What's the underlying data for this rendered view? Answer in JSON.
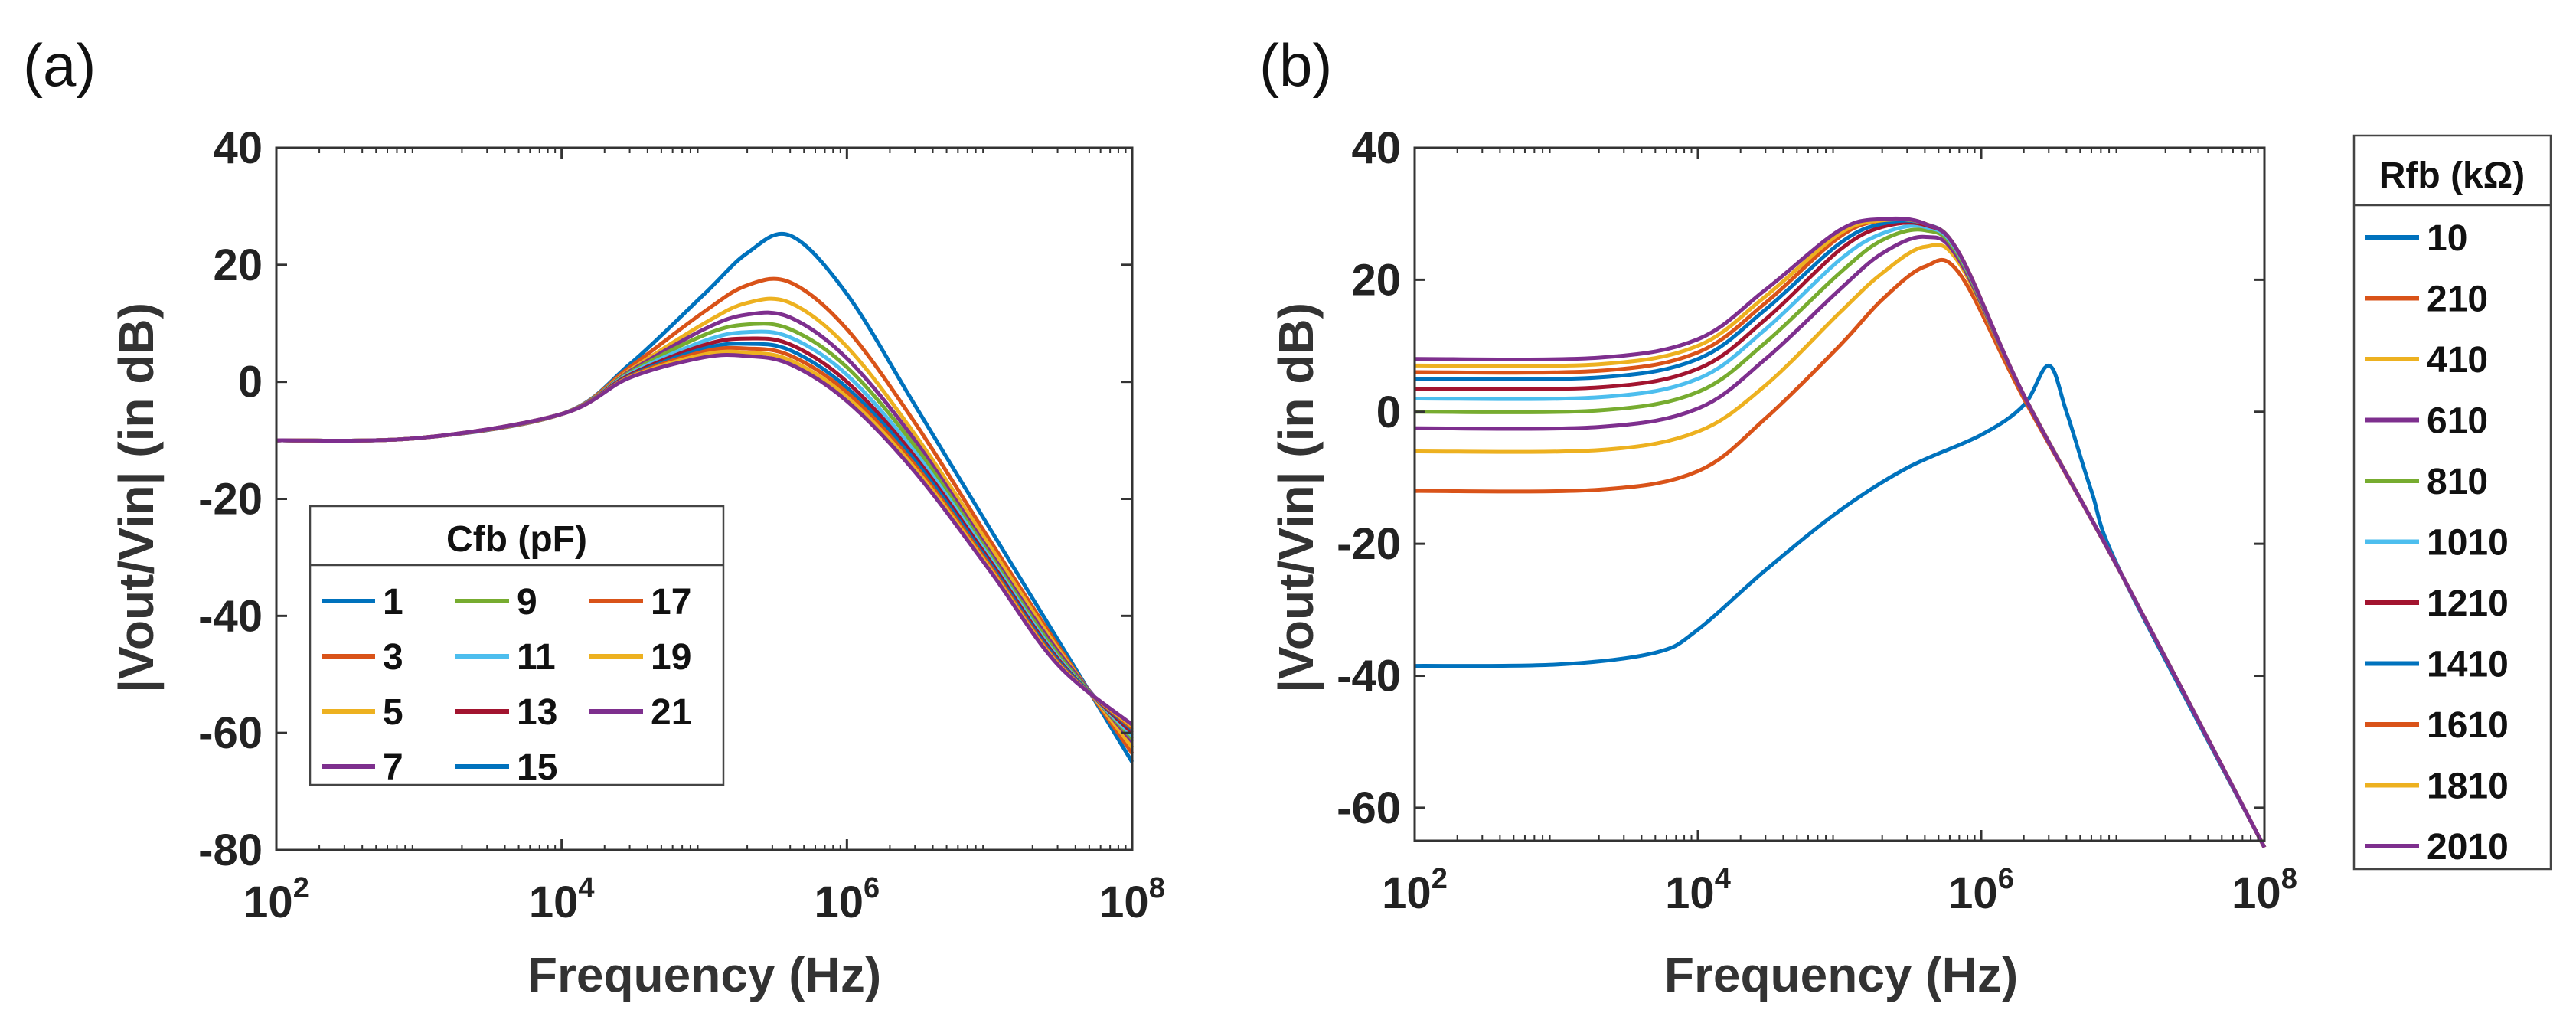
{
  "colors": [
    "#0072BD",
    "#D95319",
    "#EDB120",
    "#7E2F8E",
    "#77AC30",
    "#4DBEEE",
    "#A2142F"
  ],
  "chart_data": [
    {
      "panel": "(a)",
      "type": "line",
      "xscale": "log",
      "xlim": [
        100,
        100000000
      ],
      "ylim": [
        -80,
        40
      ],
      "xticks": [
        {
          "base": "10",
          "exp": "2"
        },
        {
          "base": "10",
          "exp": "4"
        },
        {
          "base": "10",
          "exp": "6"
        },
        {
          "base": "10",
          "exp": "8"
        }
      ],
      "yticks": [
        "40",
        "20",
        "0",
        "-20",
        "-40",
        "-60",
        "-80"
      ],
      "xlabel": "Frequency (Hz)",
      "ylabel": "|Vout/Vin| (in dB)",
      "legend": {
        "title": "Cfb (pF)",
        "position": "lower-left",
        "columns": 3
      },
      "x": [
        100,
        1000,
        10000,
        30000,
        100000,
        200000,
        400000,
        1000000,
        3000000,
        10000000,
        30000000,
        100000000
      ],
      "series": [
        {
          "name": "1",
          "values": [
            -10,
            -9.6,
            -5.5,
            3,
            15,
            22,
            25,
            15,
            -4,
            -25,
            -44,
            -65
          ]
        },
        {
          "name": "3",
          "values": [
            -10,
            -9.6,
            -5.5,
            2.5,
            12,
            16.5,
            17,
            9,
            -7,
            -27,
            -45,
            -63.5
          ]
        },
        {
          "name": "5",
          "values": [
            -10,
            -9.6,
            -5.5,
            2,
            10,
            13.5,
            13.5,
            6,
            -9,
            -28,
            -45.5,
            -62.5
          ]
        },
        {
          "name": "7",
          "values": [
            -10,
            -9.6,
            -5.5,
            1.8,
            9,
            11.5,
            11,
            4,
            -10,
            -29,
            -46,
            -61.5
          ]
        },
        {
          "name": "9",
          "values": [
            -10,
            -9.6,
            -5.5,
            1.6,
            8,
            9.8,
            9,
            2.5,
            -11,
            -29.5,
            -46.5,
            -61
          ]
        },
        {
          "name": "11",
          "values": [
            -10,
            -9.6,
            -5.5,
            1.4,
            7,
            8.5,
            7.6,
            1.2,
            -12,
            -30,
            -47,
            -60.5
          ]
        },
        {
          "name": "13",
          "values": [
            -10,
            -9.6,
            -5.5,
            1.2,
            6.3,
            7.4,
            6.4,
            0,
            -12.8,
            -30.5,
            -47.3,
            -60
          ]
        },
        {
          "name": "15",
          "values": [
            -10,
            -9.6,
            -5.5,
            1,
            5.7,
            6.5,
            5.4,
            -1,
            -13.5,
            -31,
            -47.6,
            -59.5
          ]
        },
        {
          "name": "17",
          "values": [
            -10,
            -9.6,
            -5.5,
            0.9,
            5.2,
            5.7,
            4.5,
            -1.8,
            -14.2,
            -31.4,
            -47.9,
            -59.2
          ]
        },
        {
          "name": "19",
          "values": [
            -10,
            -9.6,
            -5.5,
            0.8,
            4.7,
            5,
            3.7,
            -2.6,
            -14.8,
            -31.8,
            -48.1,
            -58.9
          ]
        },
        {
          "name": "21",
          "values": [
            -10,
            -9.6,
            -5.5,
            0.7,
            4.2,
            4.4,
            3,
            -3.3,
            -15.4,
            -32.2,
            -48.3,
            -58.6
          ]
        }
      ]
    },
    {
      "panel": "(b)",
      "type": "line",
      "xscale": "log",
      "xlim": [
        100,
        100000000
      ],
      "ylim": [
        -65,
        40
      ],
      "xticks": [
        {
          "base": "10",
          "exp": "2"
        },
        {
          "base": "10",
          "exp": "4"
        },
        {
          "base": "10",
          "exp": "6"
        },
        {
          "base": "10",
          "exp": "8"
        }
      ],
      "yticks": [
        "40",
        "20",
        "0",
        "-20",
        "-40",
        "-60"
      ],
      "xlabel": "Frequency (Hz)",
      "ylabel": "|Vout/Vin| (in dB)",
      "legend": {
        "title": "Rfb (kΩ)",
        "position": "outside-right",
        "columns": 1
      },
      "series": [
        {
          "name": "10",
          "x": [
            100,
            1000,
            5000,
            10000,
            30000,
            100000,
            300000,
            1000000,
            2000000,
            3000000,
            4000000,
            6000000,
            10000000,
            100000000
          ],
          "values": [
            -38.5,
            -38.3,
            -36.5,
            -33,
            -24,
            -15,
            -8.5,
            -3.5,
            1,
            7,
            0,
            -12,
            -25,
            -66
          ]
        },
        {
          "name": "210",
          "x": [
            100,
            2000,
            10000,
            30000,
            100000,
            200000,
            400000,
            700000,
            2000000,
            10000000,
            100000000
          ],
          "values": [
            -12,
            -11.8,
            -9,
            -1,
            10,
            17,
            22,
            21,
            2,
            -25,
            -66
          ]
        },
        {
          "name": "410",
          "x": [
            100,
            2000,
            10000,
            30000,
            100000,
            200000,
            400000,
            700000,
            2000000,
            10000000,
            100000000
          ],
          "values": [
            -6,
            -5.8,
            -3,
            4,
            15,
            21,
            25,
            22.5,
            2.5,
            -25,
            -66
          ]
        },
        {
          "name": "610",
          "x": [
            100,
            2000,
            10000,
            30000,
            100000,
            200000,
            400000,
            700000,
            2000000,
            10000000,
            100000000
          ],
          "values": [
            -2.5,
            -2.3,
            0.5,
            8,
            18.5,
            24,
            26.5,
            23,
            2.5,
            -25,
            -66
          ]
        },
        {
          "name": "810",
          "x": [
            100,
            2000,
            10000,
            30000,
            100000,
            200000,
            400000,
            700000,
            2000000,
            10000000,
            100000000
          ],
          "values": [
            0,
            0.2,
            3,
            10.5,
            21,
            26,
            27.5,
            23.5,
            2.5,
            -25,
            -66
          ]
        },
        {
          "name": "1010",
          "x": [
            100,
            2000,
            10000,
            30000,
            100000,
            200000,
            400000,
            700000,
            2000000,
            10000000,
            100000000
          ],
          "values": [
            2,
            2.2,
            5,
            12.5,
            23,
            27,
            28,
            23.8,
            2.5,
            -25,
            -66
          ]
        },
        {
          "name": "1210",
          "x": [
            100,
            2000,
            10000,
            30000,
            100000,
            200000,
            400000,
            700000,
            2000000,
            10000000,
            100000000
          ],
          "values": [
            3.5,
            3.7,
            6.5,
            14,
            24.5,
            28,
            28.3,
            24,
            2.5,
            -25,
            -66
          ]
        },
        {
          "name": "1410",
          "x": [
            100,
            2000,
            10000,
            30000,
            100000,
            200000,
            400000,
            700000,
            2000000,
            10000000,
            100000000
          ],
          "values": [
            5,
            5.2,
            8,
            15.5,
            25.5,
            28.5,
            28.5,
            24,
            2.5,
            -25,
            -66
          ]
        },
        {
          "name": "1610",
          "x": [
            100,
            2000,
            10000,
            30000,
            100000,
            200000,
            400000,
            700000,
            2000000,
            10000000,
            100000000
          ],
          "values": [
            6,
            6.2,
            9,
            16.5,
            26.5,
            29,
            28.5,
            24,
            2.5,
            -25,
            -66
          ]
        },
        {
          "name": "1810",
          "x": [
            100,
            2000,
            10000,
            30000,
            100000,
            200000,
            400000,
            700000,
            2000000,
            10000000,
            100000000
          ],
          "values": [
            7,
            7.2,
            10,
            17.5,
            27,
            29,
            28.5,
            24,
            2.5,
            -25,
            -66
          ]
        },
        {
          "name": "2010",
          "x": [
            100,
            2000,
            10000,
            30000,
            100000,
            200000,
            400000,
            700000,
            2000000,
            10000000,
            100000000
          ],
          "values": [
            8,
            8.2,
            11,
            18.5,
            27.5,
            29.2,
            28.5,
            24,
            2.5,
            -25,
            -66
          ]
        }
      ]
    }
  ]
}
